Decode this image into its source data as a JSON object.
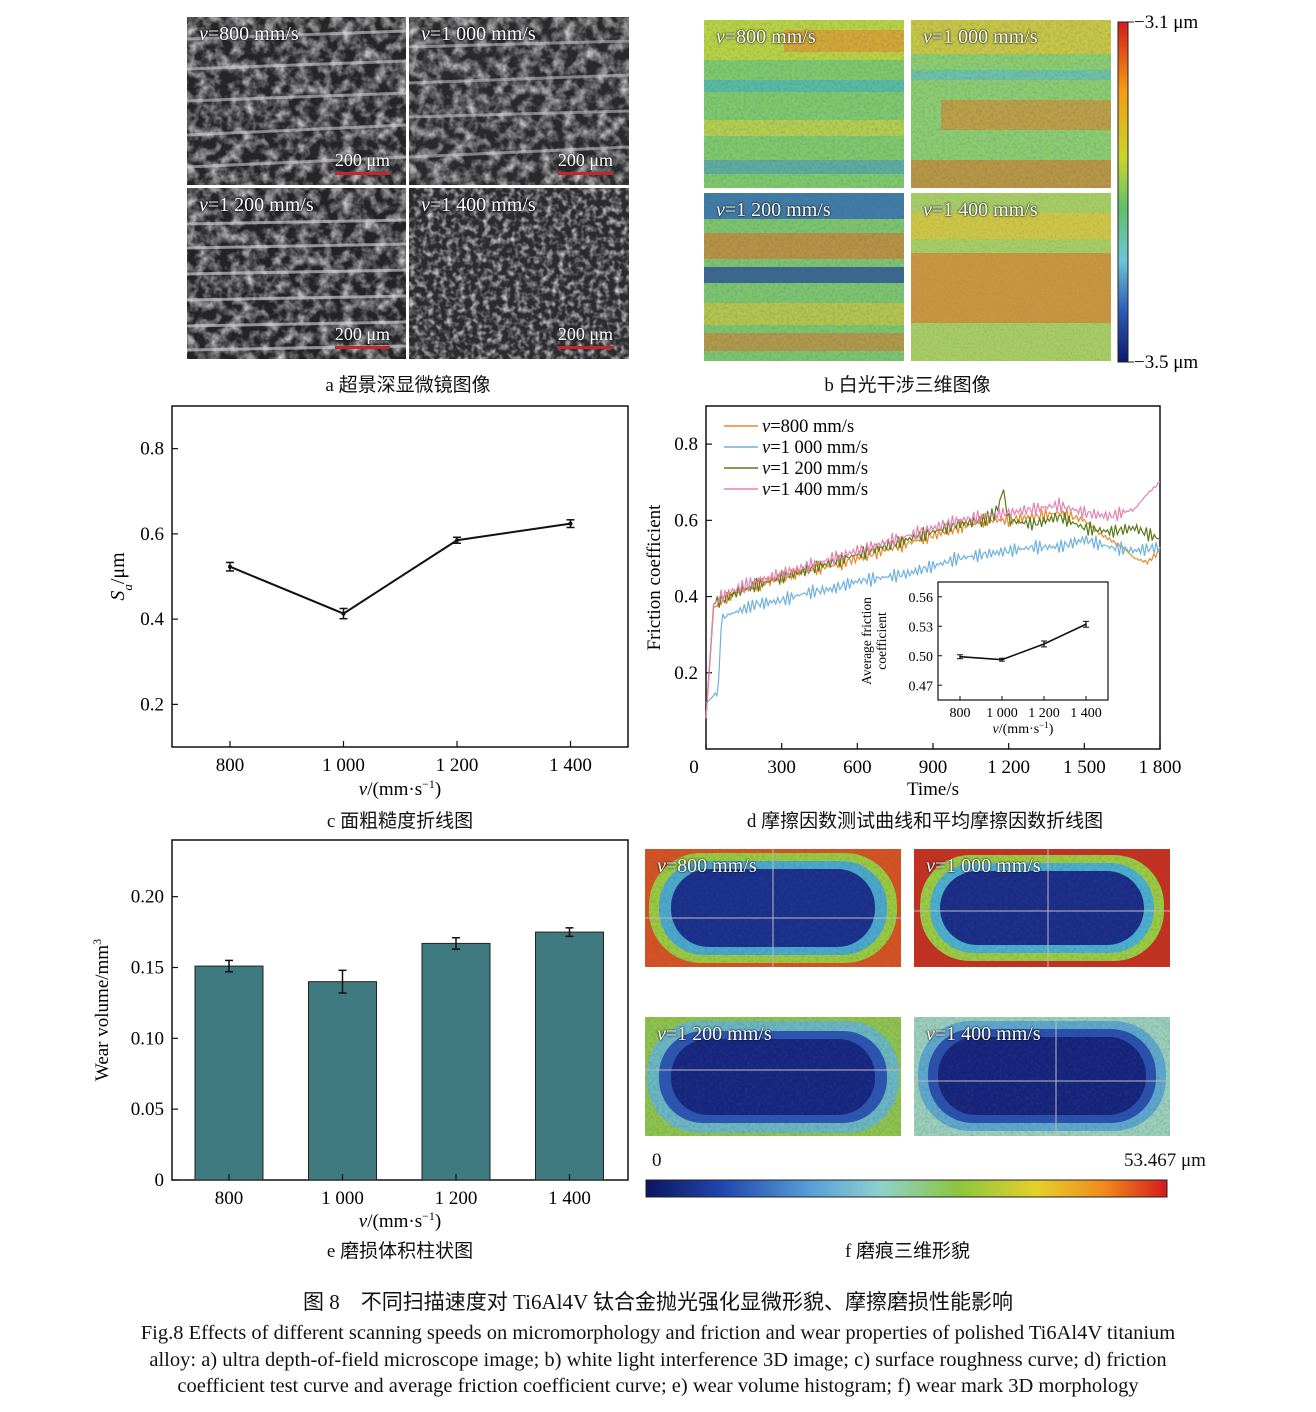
{
  "panel_a": {
    "caption": "a 超景深显微镜图像",
    "tiles": [
      {
        "label": "v=800 mm/s",
        "scale": "200 μm"
      },
      {
        "label": "v=1 000 mm/s",
        "scale": "200 μm"
      },
      {
        "label": "v=1 200 mm/s",
        "scale": "200 μm"
      },
      {
        "label": "v=1 400 mm/s",
        "scale": "200 μm"
      }
    ]
  },
  "panel_b": {
    "caption": "b 白光干涉三维图像",
    "tiles": [
      {
        "label": "v=800 mm/s"
      },
      {
        "label": "v=1 000 mm/s"
      },
      {
        "label": "v=1 200 mm/s"
      },
      {
        "label": "v=1 400 mm/s"
      }
    ],
    "colorbar_top": "3.1 μm",
    "colorbar_bottom": "3.5 μm"
  },
  "panel_f": {
    "caption": "f 磨痕三维形貌",
    "tiles": [
      {
        "label": "v=800 mm/s"
      },
      {
        "label": "v=1 000 mm/s"
      },
      {
        "label": "v=1 200 mm/s"
      },
      {
        "label": "v=1 400 mm/s"
      }
    ],
    "colorbar_min": "0",
    "colorbar_max": "53.467 μm"
  },
  "chart_data": [
    {
      "id": "c",
      "type": "line",
      "caption": "c 面粗糙度折线图",
      "xlabel": "v/(mm·s⁻¹)",
      "ylabel": "Sa/μm",
      "categories": [
        "800",
        "1 000",
        "1 200",
        "1 400"
      ],
      "values": [
        0.523,
        0.413,
        0.585,
        0.624
      ],
      "errors": [
        0.01,
        0.012,
        0.007,
        0.009
      ],
      "ylim": [
        0.1,
        0.9
      ],
      "yticks": [
        "0.2",
        "0.4",
        "0.6",
        "0.8"
      ],
      "grid": false
    },
    {
      "id": "d",
      "type": "line",
      "caption": "d 摩擦因数测试曲线和平均摩擦因数折线图",
      "xlabel": "Time/s",
      "ylabel": "Friction coefficient",
      "xlim": [
        0,
        1800
      ],
      "ylim": [
        0,
        0.9
      ],
      "xticks": [
        "0",
        "300",
        "600",
        "900",
        "1 200",
        "1 500",
        "1 800"
      ],
      "yticks": [
        "0.2",
        "0.4",
        "0.6",
        "0.8"
      ],
      "legend_position": "top-left",
      "series": [
        {
          "name": "v=800 mm/s",
          "color": "#e8892e",
          "x": [
            0,
            30,
            60,
            120,
            200,
            300,
            400,
            500,
            600,
            700,
            800,
            900,
            1000,
            1100,
            1200,
            1300,
            1400,
            1500,
            1550,
            1600,
            1650,
            1700,
            1750,
            1800
          ],
          "y": [
            0.08,
            0.37,
            0.39,
            0.41,
            0.43,
            0.45,
            0.47,
            0.48,
            0.5,
            0.52,
            0.54,
            0.56,
            0.58,
            0.6,
            0.6,
            0.61,
            0.62,
            0.6,
            0.57,
            0.55,
            0.53,
            0.5,
            0.49,
            0.52
          ]
        },
        {
          "name": "v=1 000 mm/s",
          "color": "#6fb1e0",
          "x": [
            0,
            30,
            50,
            60,
            80,
            120,
            200,
            300,
            400,
            500,
            600,
            700,
            800,
            900,
            1000,
            1100,
            1200,
            1300,
            1400,
            1500,
            1600,
            1700,
            1800
          ],
          "y": [
            0.12,
            0.14,
            0.16,
            0.33,
            0.35,
            0.36,
            0.38,
            0.39,
            0.41,
            0.42,
            0.44,
            0.45,
            0.46,
            0.48,
            0.5,
            0.51,
            0.52,
            0.53,
            0.53,
            0.55,
            0.53,
            0.52,
            0.53
          ]
        },
        {
          "name": "v=1 200 mm/s",
          "color": "#5a7a1a",
          "x": [
            0,
            30,
            60,
            120,
            200,
            300,
            400,
            500,
            600,
            700,
            800,
            900,
            1000,
            1100,
            1150,
            1180,
            1200,
            1300,
            1400,
            1500,
            1600,
            1700,
            1800
          ],
          "y": [
            0.08,
            0.38,
            0.39,
            0.41,
            0.43,
            0.45,
            0.47,
            0.49,
            0.51,
            0.53,
            0.55,
            0.57,
            0.59,
            0.6,
            0.62,
            0.68,
            0.6,
            0.59,
            0.61,
            0.58,
            0.57,
            0.58,
            0.55
          ]
        },
        {
          "name": "v=1 400 mm/s",
          "color": "#e583b4",
          "x": [
            0,
            30,
            60,
            120,
            200,
            300,
            400,
            500,
            600,
            700,
            800,
            900,
            1000,
            1100,
            1200,
            1300,
            1400,
            1500,
            1600,
            1700,
            1750,
            1800
          ],
          "y": [
            0.08,
            0.38,
            0.4,
            0.42,
            0.44,
            0.46,
            0.48,
            0.5,
            0.52,
            0.54,
            0.56,
            0.58,
            0.6,
            0.61,
            0.62,
            0.63,
            0.64,
            0.62,
            0.61,
            0.63,
            0.67,
            0.7
          ]
        }
      ],
      "inset": {
        "xlabel": "v/(mm·s⁻¹)",
        "ylabel": "Average friction coefficient",
        "categories": [
          "800",
          "1 000",
          "1 200",
          "1 400"
        ],
        "values": [
          0.499,
          0.496,
          0.512,
          0.532
        ],
        "errors": [
          0.002,
          0.0015,
          0.003,
          0.003
        ],
        "ylim": [
          0.455,
          0.575
        ],
        "yticks": [
          "0.47",
          "0.50",
          "0.53",
          "0.56"
        ]
      }
    },
    {
      "id": "e",
      "type": "bar",
      "caption": "e 磨损体积柱状图",
      "xlabel": "v/(mm·s⁻¹)",
      "ylabel": "Wear volume/mm³",
      "categories": [
        "800",
        "1 000",
        "1 200",
        "1 400"
      ],
      "values": [
        0.151,
        0.14,
        0.167,
        0.175
      ],
      "errors": [
        0.004,
        0.008,
        0.004,
        0.003
      ],
      "ylim": [
        0,
        0.24
      ],
      "yticks": [
        "0",
        "0.05",
        "0.10",
        "0.15",
        "0.20"
      ],
      "bar_color": "#3f7a80",
      "grid": false
    }
  ],
  "figure": {
    "title_cn": "图 8　不同扫描速度对 Ti6Al4V 钛合金抛光强化显微形貌、摩擦磨损性能影响",
    "caption_en_1": "Fig.8 Effects of different scanning speeds on micromorphology and friction and wear properties of polished Ti6Al4V titanium",
    "caption_en_2": "alloy: a) ultra depth-of-field microscope image; b) white light interference 3D image; c) surface roughness curve; d) friction",
    "caption_en_3": "coefficient test curve and average friction coefficient curve; e) wear volume histogram; f) wear mark 3D morphology"
  }
}
